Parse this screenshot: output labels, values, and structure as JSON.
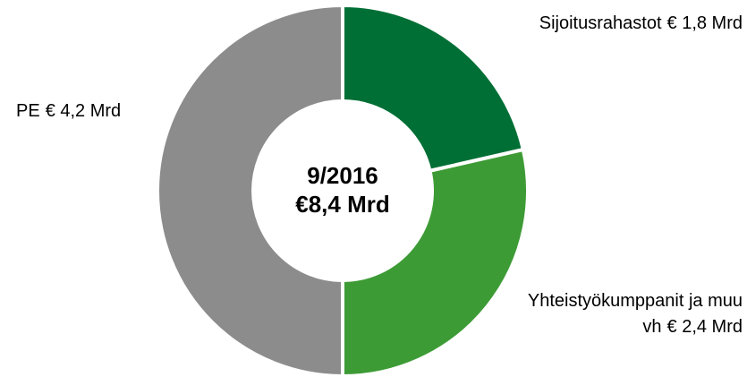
{
  "chart_data": {
    "type": "donut",
    "title": "9/2016",
    "subtitle": "€8,4 Mrd",
    "categories": [
      "Sijoitusrahastot",
      "Yhteistyökumppanit ja muu vh",
      "PE"
    ],
    "values": [
      1.8,
      2.4,
      4.2
    ],
    "value_labels": [
      "€ 1,8 Mrd",
      "€ 2,4 Mrd",
      "€ 4,2 Mrd"
    ],
    "colors": [
      "#006f35",
      "#3d9b35",
      "#8c8c8c"
    ]
  }
}
